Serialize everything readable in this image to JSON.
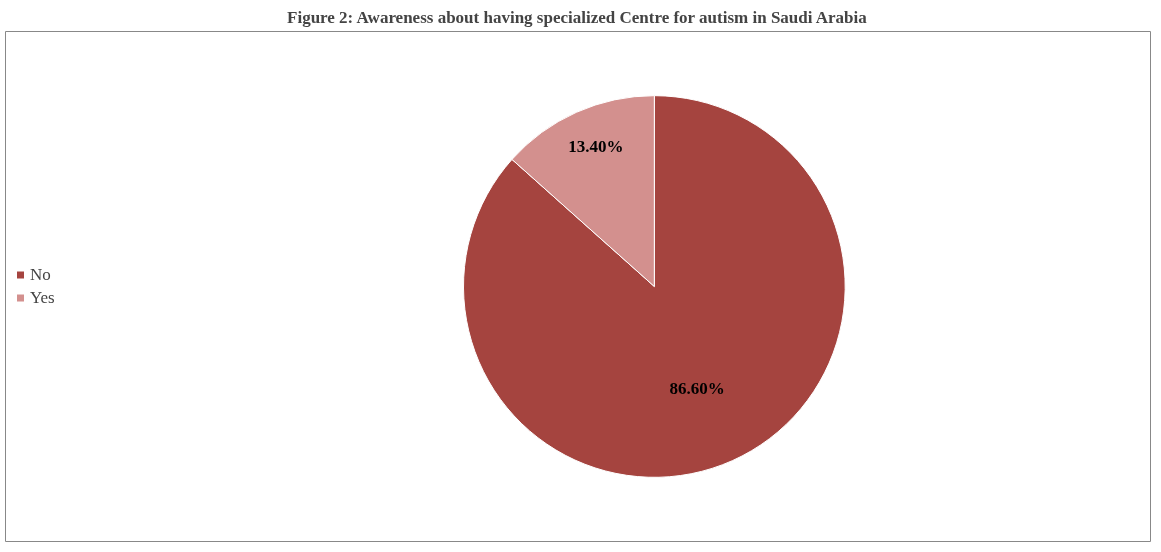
{
  "chart_data": {
    "type": "pie",
    "title": "Figure 2: Awareness about having specialized Centre for autism in Saudi Arabia",
    "categories": [
      "No",
      "Yes"
    ],
    "values": [
      86.6,
      13.4
    ],
    "colors": [
      "#a5443f",
      "#d3908e"
    ],
    "value_labels": [
      "86.60%",
      "13.40%"
    ],
    "legend": "left"
  }
}
